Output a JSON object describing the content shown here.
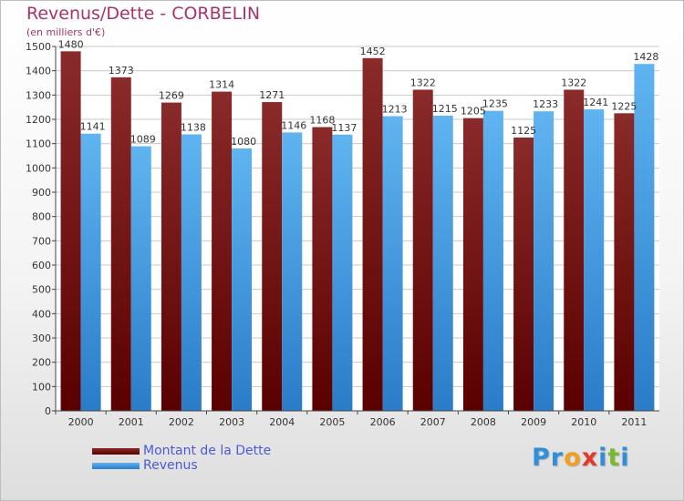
{
  "chart_data": {
    "type": "bar",
    "title": "Revenus/Dette - CORBELIN",
    "subtitle": "(en milliers d'€)",
    "categories": [
      "2000",
      "2001",
      "2002",
      "2003",
      "2004",
      "2005",
      "2006",
      "2007",
      "2008",
      "2009",
      "2010",
      "2011"
    ],
    "series": [
      {
        "name": "Montant de la Dette",
        "color": "#7a1010",
        "values": [
          1480,
          1373,
          1269,
          1314,
          1271,
          1168,
          1452,
          1322,
          1205,
          1125,
          1322,
          1225
        ]
      },
      {
        "name": "Revenus",
        "color": "#3a9be4",
        "values": [
          1141,
          1089,
          1138,
          1080,
          1146,
          1137,
          1213,
          1215,
          1235,
          1233,
          1241,
          1428
        ]
      }
    ],
    "ylim": [
      0,
      1500
    ],
    "yticks": [
      0,
      100,
      200,
      300,
      400,
      500,
      600,
      700,
      800,
      900,
      1000,
      1100,
      1200,
      1300,
      1400,
      1500
    ],
    "grid": true,
    "legend_position": "bottom-left"
  },
  "logo": {
    "letters": [
      {
        "ch": "P",
        "color": "#2f8fd8"
      },
      {
        "ch": "r",
        "color": "#2f8fd8"
      },
      {
        "ch": "o",
        "color": "#f0a020"
      },
      {
        "ch": "x",
        "color": "#e03a2a"
      },
      {
        "ch": "i",
        "color": "#2f8fd8"
      },
      {
        "ch": "t",
        "color": "#7ab832"
      },
      {
        "ch": "i",
        "color": "#2f8fd8"
      }
    ]
  }
}
